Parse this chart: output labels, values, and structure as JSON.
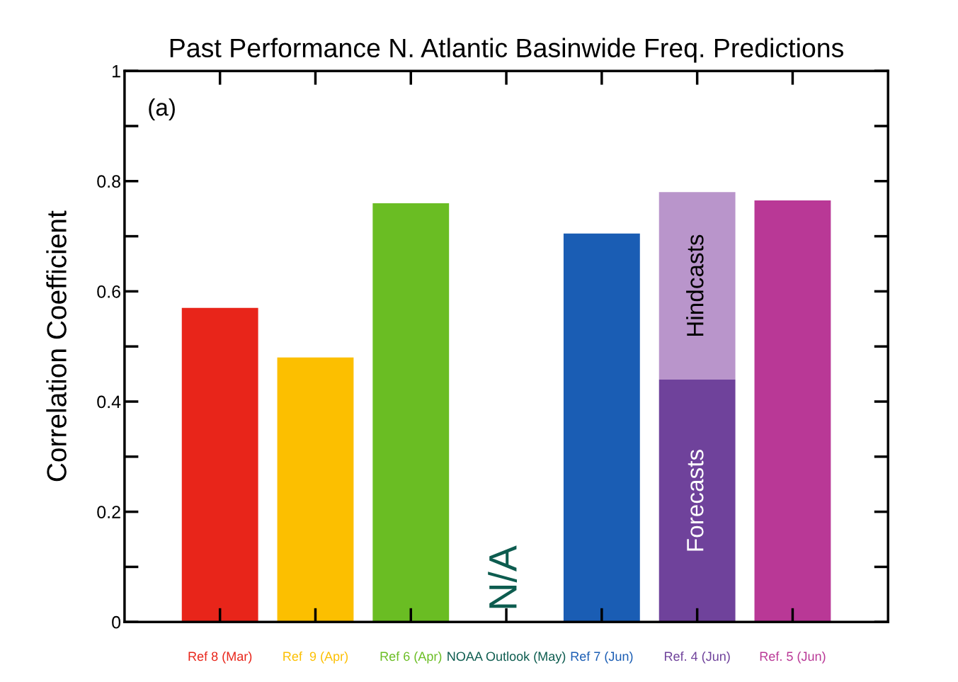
{
  "chart_data": {
    "type": "bar",
    "title": "Past Performance N. Atlantic Basinwide Freq. Predictions",
    "ylabel": "Correlation Coefficient",
    "categories": [
      "Ref 8 (Mar)",
      "Ref  9 (Apr)",
      "Ref 6 (Apr)",
      "NOAA Outlook (May)",
      "Ref 7 (Jun)",
      "Ref. 4 (Jun)",
      "Ref. 5 (Jun)"
    ],
    "stacked": true,
    "series": [
      {
        "name": "Forecasts",
        "colors": [
          "#e8251a",
          "#fcbf00",
          "#6abd23",
          "#0d5c4f",
          "#1a5db4",
          "#6f429b",
          "#b93896"
        ],
        "values": [
          0.57,
          0.48,
          0.76,
          null,
          0.705,
          0.44,
          0.765
        ]
      },
      {
        "name": "Hindcasts",
        "colors": [
          null,
          null,
          null,
          null,
          null,
          "#b995cb",
          null
        ],
        "values": [
          null,
          null,
          null,
          null,
          null,
          0.34,
          null
        ]
      }
    ],
    "ylim": [
      0,
      1
    ],
    "yticks": [
      0,
      0.2,
      0.4,
      0.6,
      0.8,
      1
    ],
    "annotations": [
      "(a)",
      "N/A"
    ],
    "grid": false,
    "legend": false
  }
}
